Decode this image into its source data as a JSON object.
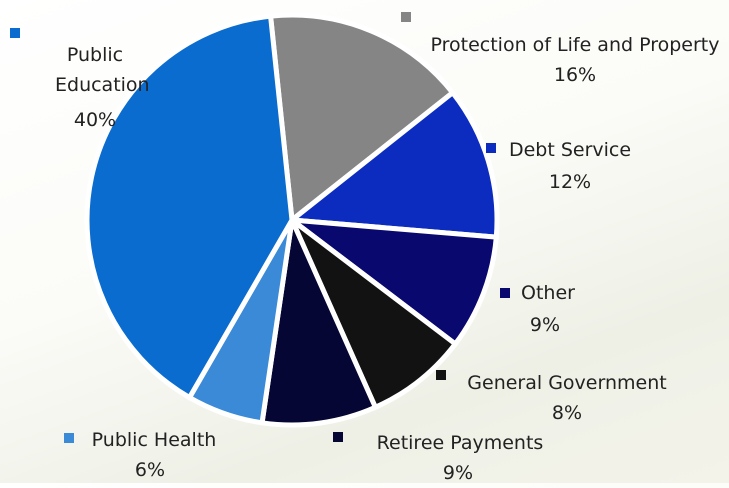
{
  "chart_data": {
    "type": "pie",
    "categories": [
      "Protection of Life and Property",
      "Debt Service",
      "Other",
      "General Government",
      "Retiree Payments",
      "Public Health",
      "Public Education"
    ],
    "values": [
      16,
      12,
      9,
      8,
      9,
      6,
      40
    ],
    "value_labels": [
      "16%",
      "12%",
      "9%",
      "8%",
      "9%",
      "6%",
      "40%"
    ],
    "colors": [
      "#858585",
      "#0c2cbf",
      "#08086e",
      "#121212",
      "#060634",
      "#3a8ad8",
      "#0a6ccf"
    ]
  }
}
